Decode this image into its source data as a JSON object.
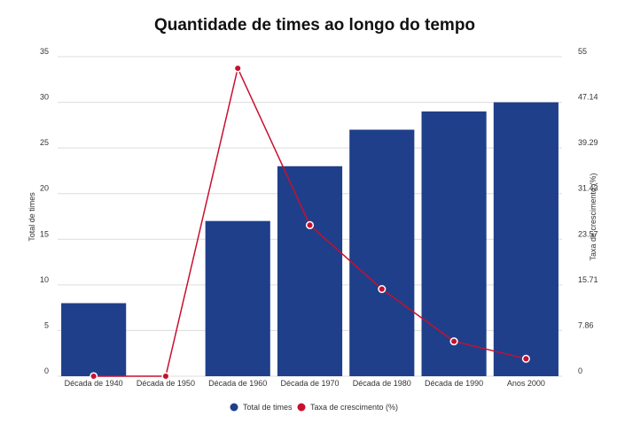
{
  "chart_data": {
    "type": "bar",
    "title": "Quantidade de times ao longo do tempo",
    "categories": [
      "Década de 1940",
      "Década de 1950",
      "Década de 1960",
      "Década de 1970",
      "Década de 1980",
      "Década de 1990",
      "Anos 2000"
    ],
    "series": [
      {
        "name": "Total de times",
        "type": "bar",
        "axis": "left",
        "color": "#1f3f8a",
        "values": [
          8,
          0,
          17,
          23,
          27,
          29,
          30
        ]
      },
      {
        "name": "Taxa de crescimento (%)",
        "type": "line",
        "axis": "right",
        "color": "#c8102e",
        "values": [
          0,
          0,
          53,
          26,
          15,
          6,
          3
        ]
      }
    ],
    "y_left": {
      "label": "Total de times",
      "range": [
        0,
        35
      ],
      "ticks": [
        "0",
        "5",
        "10",
        "15",
        "20",
        "25",
        "30",
        "35"
      ]
    },
    "y_right": {
      "label": "Taxa de crescimento (%)",
      "range": [
        0,
        55
      ],
      "ticks": [
        "0",
        "7.86",
        "15.71",
        "23.57",
        "31.43",
        "39.29",
        "47.14",
        "55"
      ]
    },
    "grid": true,
    "legend": "bottom-center"
  }
}
